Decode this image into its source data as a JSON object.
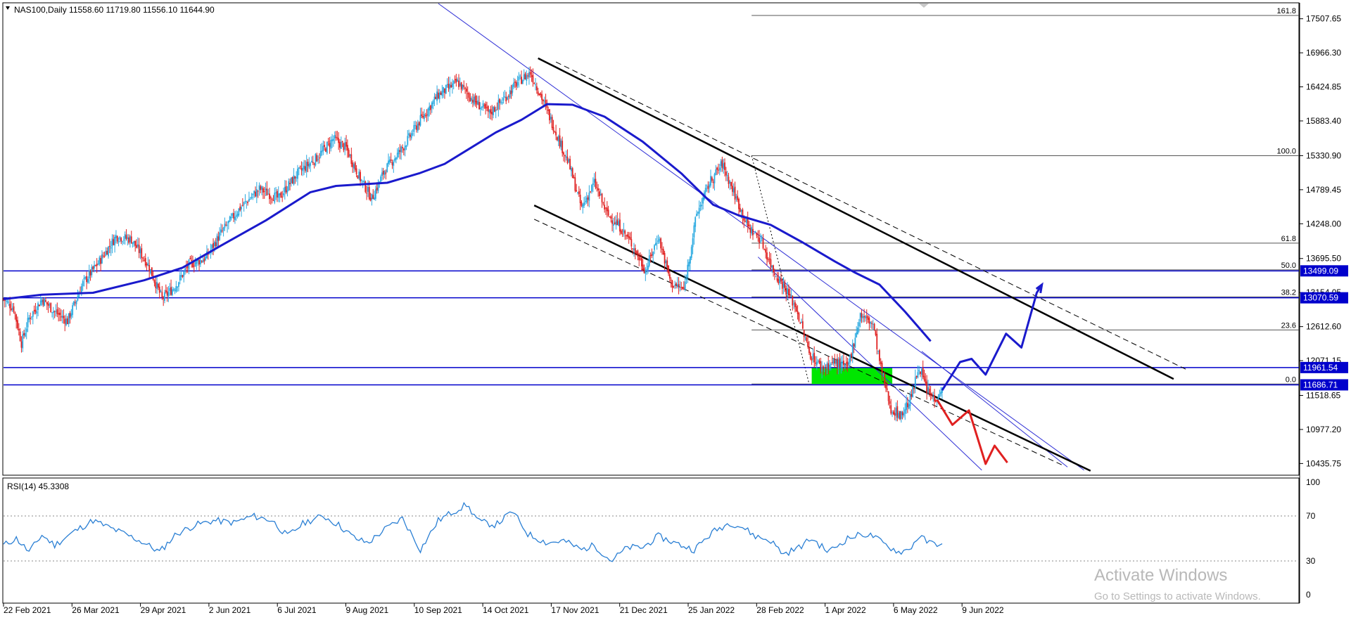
{
  "header": {
    "symbol_line": "NAS100,Daily  11558.60 11719.80 11556.10 11644.90",
    "rsi_line": "RSI(14) 45.3308"
  },
  "colors": {
    "bull": "#29a9e0",
    "bear": "#e02020",
    "ma": "#1a1acc",
    "channel": "#000000",
    "hline": "#0000cc",
    "zone": "#00e600",
    "rsi": "#2a7fd4",
    "forecast_up": "#1a1acc",
    "forecast_down": "#e02020"
  },
  "chart_data": {
    "type": "line",
    "symbol": "NAS100",
    "timeframe": "Daily",
    "ohlc": {
      "open": 11558.6,
      "high": 11719.8,
      "low": 11556.1,
      "close": 11644.9
    },
    "x_tick_labels": [
      "22 Feb 2021",
      "26 Mar 2021",
      "29 Apr 2021",
      "2 Jun 2021",
      "6 Jul 2021",
      "9 Aug 2021",
      "10 Sep 2021",
      "14 Oct 2021",
      "17 Nov 2021",
      "21 Dec 2021",
      "25 Jan 2022",
      "28 Feb 2022",
      "1 Apr 2022",
      "6 May 2022",
      "9 Jun 2022"
    ],
    "y_tick_labels": [
      "17507.65",
      "16966.30",
      "16424.85",
      "15883.40",
      "15330.90",
      "14789.45",
      "14248.00",
      "13695.50",
      "13154.05",
      "12612.60",
      "12071.15",
      "11518.65",
      "10977.20",
      "10435.75"
    ],
    "ylim": [
      10250,
      17750
    ],
    "close_series": [
      {
        "t": 0,
        "v": 13050
      },
      {
        "t": 8,
        "v": 12900
      },
      {
        "t": 14,
        "v": 12350
      },
      {
        "t": 20,
        "v": 12750
      },
      {
        "t": 30,
        "v": 13050
      },
      {
        "t": 40,
        "v": 12850
      },
      {
        "t": 50,
        "v": 12700
      },
      {
        "t": 62,
        "v": 13300
      },
      {
        "t": 75,
        "v": 13650
      },
      {
        "t": 88,
        "v": 14050
      },
      {
        "t": 100,
        "v": 14000
      },
      {
        "t": 113,
        "v": 13600
      },
      {
        "t": 124,
        "v": 13050
      },
      {
        "t": 134,
        "v": 13250
      },
      {
        "t": 145,
        "v": 13600
      },
      {
        "t": 158,
        "v": 13700
      },
      {
        "t": 170,
        "v": 14100
      },
      {
        "t": 185,
        "v": 14500
      },
      {
        "t": 200,
        "v": 14800
      },
      {
        "t": 215,
        "v": 14650
      },
      {
        "t": 230,
        "v": 15050
      },
      {
        "t": 245,
        "v": 15300
      },
      {
        "t": 258,
        "v": 15600
      },
      {
        "t": 268,
        "v": 15450
      },
      {
        "t": 278,
        "v": 15000
      },
      {
        "t": 288,
        "v": 14650
      },
      {
        "t": 298,
        "v": 15100
      },
      {
        "t": 312,
        "v": 15450
      },
      {
        "t": 326,
        "v": 15900
      },
      {
        "t": 340,
        "v": 16300
      },
      {
        "t": 355,
        "v": 16500
      },
      {
        "t": 368,
        "v": 16200
      },
      {
        "t": 380,
        "v": 16000
      },
      {
        "t": 392,
        "v": 16250
      },
      {
        "t": 402,
        "v": 16500
      },
      {
        "t": 412,
        "v": 16650
      },
      {
        "t": 422,
        "v": 16200
      },
      {
        "t": 432,
        "v": 15700
      },
      {
        "t": 442,
        "v": 15200
      },
      {
        "t": 452,
        "v": 14500
      },
      {
        "t": 462,
        "v": 14900
      },
      {
        "t": 472,
        "v": 14400
      },
      {
        "t": 482,
        "v": 14200
      },
      {
        "t": 492,
        "v": 13900
      },
      {
        "t": 502,
        "v": 13500
      },
      {
        "t": 512,
        "v": 14050
      },
      {
        "t": 522,
        "v": 13300
      },
      {
        "t": 532,
        "v": 13200
      },
      {
        "t": 542,
        "v": 14400
      },
      {
        "t": 552,
        "v": 14900
      },
      {
        "t": 562,
        "v": 15200
      },
      {
        "t": 572,
        "v": 14700
      },
      {
        "t": 582,
        "v": 14200
      },
      {
        "t": 592,
        "v": 14000
      },
      {
        "t": 602,
        "v": 13500
      },
      {
        "t": 612,
        "v": 13200
      },
      {
        "t": 620,
        "v": 12900
      },
      {
        "t": 630,
        "v": 12200
      },
      {
        "t": 640,
        "v": 11950
      },
      {
        "t": 650,
        "v": 12050
      },
      {
        "t": 660,
        "v": 11950
      },
      {
        "t": 670,
        "v": 12800
      },
      {
        "t": 680,
        "v": 12650
      },
      {
        "t": 686,
        "v": 11950
      },
      {
        "t": 694,
        "v": 11300
      },
      {
        "t": 702,
        "v": 11200
      },
      {
        "t": 710,
        "v": 11500
      },
      {
        "t": 716,
        "v": 12000
      },
      {
        "t": 722,
        "v": 11600
      },
      {
        "t": 728,
        "v": 11450
      },
      {
        "t": 734,
        "v": 11645
      }
    ],
    "moving_average": [
      {
        "t": 0,
        "v": 13050
      },
      {
        "t": 30,
        "v": 13120
      },
      {
        "t": 70,
        "v": 13150
      },
      {
        "t": 110,
        "v": 13350
      },
      {
        "t": 140,
        "v": 13550
      },
      {
        "t": 170,
        "v": 13900
      },
      {
        "t": 205,
        "v": 14300
      },
      {
        "t": 240,
        "v": 14750
      },
      {
        "t": 260,
        "v": 14850
      },
      {
        "t": 300,
        "v": 14900
      },
      {
        "t": 325,
        "v": 15050
      },
      {
        "t": 345,
        "v": 15200
      },
      {
        "t": 365,
        "v": 15450
      },
      {
        "t": 385,
        "v": 15700
      },
      {
        "t": 405,
        "v": 15900
      },
      {
        "t": 425,
        "v": 16150
      },
      {
        "t": 445,
        "v": 16140
      },
      {
        "t": 470,
        "v": 15950
      },
      {
        "t": 500,
        "v": 15550
      },
      {
        "t": 530,
        "v": 15050
      },
      {
        "t": 555,
        "v": 14550
      },
      {
        "t": 575,
        "v": 14380
      },
      {
        "t": 600,
        "v": 14230
      },
      {
        "t": 625,
        "v": 13950
      },
      {
        "t": 650,
        "v": 13650
      },
      {
        "t": 665,
        "v": 13480
      },
      {
        "t": 685,
        "v": 13280
      },
      {
        "t": 705,
        "v": 12850
      },
      {
        "t": 725,
        "v": 12380
      }
    ],
    "channel_lines": [
      {
        "style": "solid",
        "from": {
          "t": 418,
          "v": 16880
        },
        "to": {
          "t": 915,
          "v": 11780
        }
      },
      {
        "style": "dashed",
        "from": {
          "t": 432,
          "v": 16820
        },
        "to": {
          "t": 925,
          "v": 11930
        }
      },
      {
        "style": "solid",
        "from": {
          "t": 415,
          "v": 14540
        },
        "to": {
          "t": 850,
          "v": 10320
        }
      },
      {
        "style": "dashed",
        "from": {
          "t": 415,
          "v": 14320
        },
        "to": {
          "t": 828,
          "v": 10410
        }
      }
    ],
    "thin_trendlines": [
      {
        "from": {
          "t": 340,
          "v": 17750
        },
        "to": {
          "t": 845,
          "v": 10330
        }
      },
      {
        "from": {
          "t": 590,
          "v": 13720
        },
        "to": {
          "t": 765,
          "v": 10330
        }
      },
      {
        "from": {
          "t": 718,
          "v": 12220
        },
        "to": {
          "t": 832,
          "v": 10380
        }
      }
    ],
    "horizontal_levels": [
      {
        "value": 13499.09,
        "label": "13499.09"
      },
      {
        "value": 13070.59,
        "label": "13070.59"
      },
      {
        "value": 11961.54,
        "label": "11961.54"
      },
      {
        "value": 11686.71,
        "label": "11686.71"
      }
    ],
    "fibonacci": {
      "t_start": 585,
      "levels": [
        {
          "label": "161.8",
          "value": 17560
        },
        {
          "label": "100.0",
          "value": 15330
        },
        {
          "label": "61.8",
          "value": 13940
        },
        {
          "label": "50.0",
          "value": 13515
        },
        {
          "label": "38.2",
          "value": 13085
        },
        {
          "label": "23.6",
          "value": 12560
        },
        {
          "label": "0.0",
          "value": 11700
        }
      ],
      "anchor_line": {
        "from": {
          "t": 585,
          "v": 15330
        },
        "to": {
          "t": 630,
          "v": 11700
        }
      }
    },
    "zone": {
      "t_from": 632,
      "t_to": 695,
      "v_from": 11700,
      "v_to": 11961.54
    },
    "forecast_up": [
      {
        "t": 734,
        "v": 11600
      },
      {
        "t": 748,
        "v": 12050
      },
      {
        "t": 757,
        "v": 12100
      },
      {
        "t": 768,
        "v": 11850
      },
      {
        "t": 784,
        "v": 12500
      },
      {
        "t": 796,
        "v": 12280
      },
      {
        "t": 808,
        "v": 13150
      },
      {
        "t": 812,
        "v": 13280
      }
    ],
    "forecast_down": [
      {
        "t": 730,
        "v": 11450
      },
      {
        "t": 742,
        "v": 11050
      },
      {
        "t": 755,
        "v": 11280
      },
      {
        "t": 768,
        "v": 10430
      },
      {
        "t": 775,
        "v": 10720
      },
      {
        "t": 785,
        "v": 10450
      }
    ],
    "rsi": {
      "ylim": [
        0,
        100
      ],
      "tick_labels": [
        "100",
        "70",
        "30",
        "0"
      ],
      "levels": [
        70,
        30
      ],
      "values": [
        {
          "t": 0,
          "v": 44
        },
        {
          "t": 10,
          "v": 50
        },
        {
          "t": 20,
          "v": 38
        },
        {
          "t": 30,
          "v": 53
        },
        {
          "t": 40,
          "v": 44
        },
        {
          "t": 55,
          "v": 56
        },
        {
          "t": 70,
          "v": 66
        },
        {
          "t": 82,
          "v": 60
        },
        {
          "t": 95,
          "v": 54
        },
        {
          "t": 110,
          "v": 46
        },
        {
          "t": 122,
          "v": 38
        },
        {
          "t": 135,
          "v": 54
        },
        {
          "t": 150,
          "v": 62
        },
        {
          "t": 165,
          "v": 66
        },
        {
          "t": 180,
          "v": 64
        },
        {
          "t": 195,
          "v": 70
        },
        {
          "t": 210,
          "v": 66
        },
        {
          "t": 222,
          "v": 52
        },
        {
          "t": 235,
          "v": 64
        },
        {
          "t": 250,
          "v": 70
        },
        {
          "t": 262,
          "v": 62
        },
        {
          "t": 275,
          "v": 50
        },
        {
          "t": 285,
          "v": 46
        },
        {
          "t": 298,
          "v": 58
        },
        {
          "t": 312,
          "v": 68
        },
        {
          "t": 326,
          "v": 40
        },
        {
          "t": 340,
          "v": 66
        },
        {
          "t": 352,
          "v": 74
        },
        {
          "t": 362,
          "v": 80
        },
        {
          "t": 372,
          "v": 65
        },
        {
          "t": 385,
          "v": 62
        },
        {
          "t": 398,
          "v": 74
        },
        {
          "t": 410,
          "v": 54
        },
        {
          "t": 425,
          "v": 46
        },
        {
          "t": 438,
          "v": 48
        },
        {
          "t": 452,
          "v": 40
        },
        {
          "t": 462,
          "v": 44
        },
        {
          "t": 475,
          "v": 30
        },
        {
          "t": 488,
          "v": 42
        },
        {
          "t": 500,
          "v": 42
        },
        {
          "t": 512,
          "v": 52
        },
        {
          "t": 525,
          "v": 46
        },
        {
          "t": 540,
          "v": 40
        },
        {
          "t": 555,
          "v": 56
        },
        {
          "t": 568,
          "v": 64
        },
        {
          "t": 578,
          "v": 60
        },
        {
          "t": 588,
          "v": 52
        },
        {
          "t": 600,
          "v": 48
        },
        {
          "t": 610,
          "v": 36
        },
        {
          "t": 622,
          "v": 42
        },
        {
          "t": 632,
          "v": 50
        },
        {
          "t": 645,
          "v": 38
        },
        {
          "t": 660,
          "v": 50
        },
        {
          "t": 672,
          "v": 54
        },
        {
          "t": 680,
          "v": 52
        },
        {
          "t": 690,
          "v": 44
        },
        {
          "t": 700,
          "v": 38
        },
        {
          "t": 708,
          "v": 40
        },
        {
          "t": 716,
          "v": 52
        },
        {
          "t": 724,
          "v": 46
        },
        {
          "t": 734,
          "v": 45.3308
        }
      ]
    }
  },
  "watermark": {
    "title": "Activate Windows",
    "subtitle": "Go to Settings to activate Windows."
  }
}
